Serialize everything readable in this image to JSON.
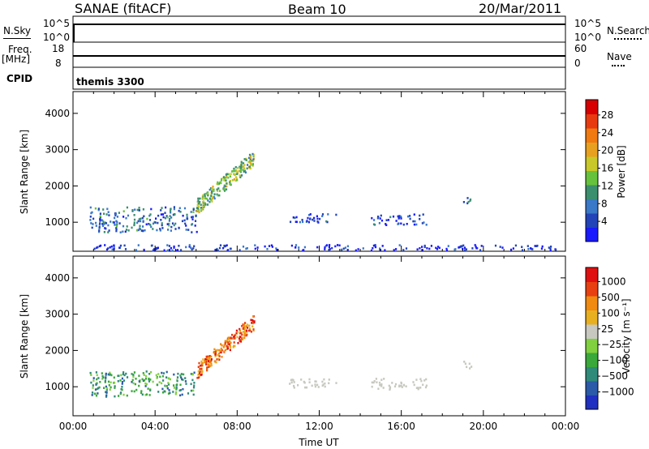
{
  "header": {
    "station": "SANAE (fitACF)",
    "beam": "Beam 10",
    "date": "20/Mar/2011"
  },
  "strips": {
    "nsky_label": "N.Sky",
    "nsky_ticks": [
      "10^5",
      "10^0"
    ],
    "nsearch_label": "N.Search",
    "nsearch_ticks": [
      "10^5",
      "10^0"
    ],
    "freq_label": "Freq.",
    "freq_unit": "[MHz]",
    "freq_ticks": [
      "18",
      "8"
    ],
    "nave_label": "Nave",
    "nave_ticks": [
      "60",
      "0"
    ],
    "cpid_label": "CPID",
    "cpid_value": "themis 3300"
  },
  "chart_data": [
    {
      "type": "heatmap",
      "name": "power",
      "ylabel": "Slant Range [km]",
      "xlabel": "",
      "ylim": [
        200,
        4600
      ],
      "yticks": [
        "4000",
        "3000",
        "2000",
        "1000"
      ],
      "xlim_hours": [
        0,
        24
      ],
      "colorbar_label": "Power [dB]",
      "colorbar_ticks": [
        "28",
        "24",
        "20",
        "16",
        "12",
        "8",
        "4"
      ],
      "colors": [
        "#1a1aff",
        "#2244b8",
        "#3a78c8",
        "#3b8f6e",
        "#66c23c",
        "#c8c82a",
        "#e8a020",
        "#f07a10",
        "#e83a10",
        "#d80000"
      ],
      "regions": [
        {
          "t0": 0.8,
          "t1": 6.0,
          "r0": 750,
          "r1": 1450,
          "level": 0.25
        },
        {
          "t0": 6.0,
          "t1": 8.8,
          "r0": 1450,
          "r1": 2800,
          "level": 0.45
        },
        {
          "t0": 10.5,
          "t1": 12.8,
          "r0": 1000,
          "r1": 1250,
          "level": 0.15
        },
        {
          "t0": 14.5,
          "t1": 17.2,
          "r0": 950,
          "r1": 1250,
          "level": 0.15
        },
        {
          "t0": 19.0,
          "t1": 19.4,
          "r0": 1500,
          "r1": 1750,
          "level": 0.25
        },
        {
          "t0": 1.0,
          "t1": 23.5,
          "r0": 250,
          "r1": 400,
          "level": 0.1
        }
      ]
    },
    {
      "type": "heatmap",
      "name": "velocity",
      "ylabel": "Slant Range [km]",
      "xlabel": "Time UT",
      "ylim": [
        200,
        4600
      ],
      "yticks": [
        "4000",
        "3000",
        "2000",
        "1000"
      ],
      "xlim_hours": [
        0,
        24
      ],
      "xticks": [
        "00:00",
        "04:00",
        "08:00",
        "12:00",
        "16:00",
        "20:00",
        "00:00"
      ],
      "colorbar_label": "Velocity [m s⁻¹]",
      "colorbar_ticks": [
        "1000",
        "500",
        "100",
        "25",
        "−25",
        "−100",
        "−500",
        "−1000"
      ],
      "colors": [
        "#2030c0",
        "#2a5aa8",
        "#2f8a7a",
        "#3aa83a",
        "#80d040",
        "#c8c8c0",
        "#e8b020",
        "#f08a10",
        "#e84010",
        "#e01010"
      ],
      "regions": [
        {
          "t0": 0.8,
          "t1": 6.0,
          "r0": 750,
          "r1": 1450,
          "level": 0.3
        },
        {
          "t0": 6.0,
          "t1": 8.8,
          "r0": 1450,
          "r1": 2800,
          "level": 0.8
        },
        {
          "t0": 10.5,
          "t1": 12.8,
          "r0": 1000,
          "r1": 1250,
          "level": 0.5
        },
        {
          "t0": 14.5,
          "t1": 17.2,
          "r0": 950,
          "r1": 1250,
          "level": 0.5
        },
        {
          "t0": 19.0,
          "t1": 19.4,
          "r0": 1500,
          "r1": 1750,
          "level": 0.5
        }
      ]
    }
  ]
}
